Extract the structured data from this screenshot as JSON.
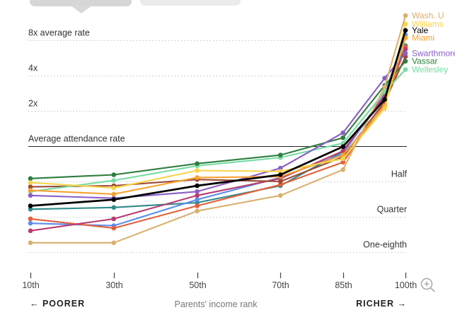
{
  "chart_data": {
    "type": "line",
    "title": "",
    "xlabel": "Parents' income rank",
    "y_scale": "log2, values are multiples of the average attendance rate",
    "x_points": [
      10,
      30,
      50,
      70,
      85,
      95,
      100
    ],
    "x_ticks": [
      {
        "rank": 10,
        "label": "10th"
      },
      {
        "rank": 30,
        "label": "30th"
      },
      {
        "rank": 50,
        "label": "50th"
      },
      {
        "rank": 70,
        "label": "70th"
      },
      {
        "rank": 85,
        "label": "85th"
      },
      {
        "rank": 100,
        "label": "100th"
      }
    ],
    "gridlines": [
      {
        "value": 8,
        "label": "8x average rate",
        "side": "left",
        "style": "dotted"
      },
      {
        "value": 4,
        "label": "4x",
        "side": "left",
        "style": "dotted"
      },
      {
        "value": 2,
        "label": "2x",
        "side": "left",
        "style": "dotted"
      },
      {
        "value": 1,
        "label": "Average attendance rate",
        "side": "left",
        "style": "solid"
      },
      {
        "value": 0.5,
        "label": "Half",
        "side": "right",
        "style": "dotted"
      },
      {
        "value": 0.25,
        "label": "Quarter",
        "side": "right",
        "style": "dotted"
      },
      {
        "value": 0.125,
        "label": "One-eighth",
        "side": "right",
        "style": "dotted"
      }
    ],
    "series": [
      {
        "label": "Wash. U",
        "color": "#d9b06e",
        "labeled": true,
        "values": [
          0.15,
          0.15,
          0.28,
          0.38,
          0.63,
          3.2,
          13.0
        ]
      },
      {
        "label": "Williams",
        "color": "#f6d44a",
        "labeled": true,
        "values": [
          0.49,
          0.44,
          0.62,
          0.61,
          0.78,
          2.1,
          11.0
        ]
      },
      {
        "label": "Yale",
        "color": "#000000",
        "labeled": true,
        "values": [
          0.31,
          0.35,
          0.46,
          0.57,
          0.99,
          2.5,
          9.7
        ]
      },
      {
        "label": "Miami",
        "color": "#f7a231",
        "labeled": true,
        "values": [
          0.42,
          0.39,
          0.54,
          0.55,
          0.84,
          2.2,
          8.4
        ]
      },
      {
        "label": "Swarthmore",
        "color": "#8a5ec4",
        "labeled": true,
        "values": [
          0.38,
          0.36,
          0.41,
          0.65,
          1.3,
          3.8,
          6.2
        ]
      },
      {
        "label": "Vassar",
        "color": "#2c7e3e",
        "labeled": true,
        "values": [
          0.53,
          0.57,
          0.71,
          0.84,
          1.18,
          3.3,
          5.3
        ]
      },
      {
        "label": "Wellesley",
        "color": "#76dba4",
        "labeled": true,
        "values": [
          0.41,
          0.51,
          0.68,
          0.8,
          1.06,
          2.9,
          4.5
        ]
      },
      {
        "label": "",
        "color": "#2f8a8a",
        "labeled": false,
        "values": [
          0.29,
          0.3,
          0.33,
          0.46,
          0.9,
          2.6,
          7.2
        ]
      },
      {
        "label": "",
        "color": "#5b8def",
        "labeled": false,
        "values": [
          0.22,
          0.21,
          0.35,
          0.54,
          0.86,
          2.8,
          8.9
        ]
      },
      {
        "label": "",
        "color": "#e2603b",
        "labeled": false,
        "values": [
          0.24,
          0.2,
          0.31,
          0.47,
          0.73,
          2.3,
          7.0
        ]
      },
      {
        "label": "",
        "color": "#bb3b6e",
        "labeled": false,
        "values": [
          0.19,
          0.24,
          0.38,
          0.53,
          0.91,
          2.7,
          6.7
        ]
      },
      {
        "label": "",
        "color": "#9d4a36",
        "labeled": false,
        "values": [
          0.45,
          0.46,
          0.52,
          0.5,
          0.81,
          2.4,
          5.8
        ]
      }
    ],
    "legend_position": "right-of-line-endpoints",
    "footer": {
      "poorer": "← POORER",
      "richer": "RICHER →"
    }
  },
  "icons": {
    "zoom_in": "magnifier-plus"
  },
  "accent_colors": {
    "average_line": "#222222",
    "gridline": "#c6c6c6",
    "tick": "#444444"
  }
}
